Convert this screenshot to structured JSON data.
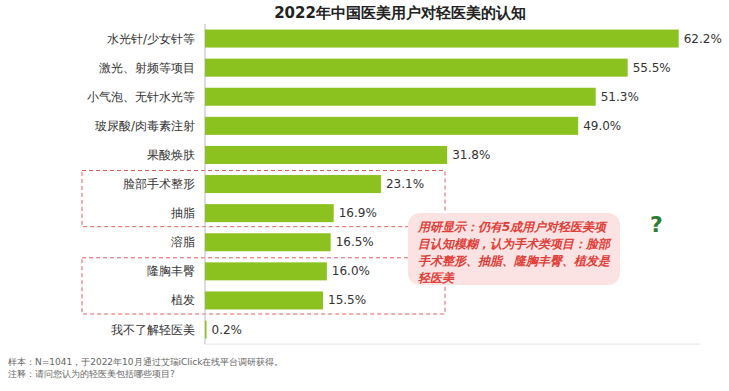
{
  "chart_data": {
    "type": "bar",
    "orientation": "horizontal",
    "title": "2022年中国医美用户对轻医美的认知",
    "categories": [
      "水光针/少女针等",
      "激光、射频等项目",
      "小气泡、无针水光等",
      "玻尿酸/肉毒素注射",
      "果酸焕肤",
      "脸部手术整形",
      "抽脂",
      "溶脂",
      "隆胸丰臀",
      "植发",
      "我不了解轻医美"
    ],
    "values": [
      62.2,
      55.5,
      51.3,
      49.0,
      31.8,
      23.1,
      16.9,
      16.5,
      16.0,
      15.5,
      0.2
    ],
    "value_labels": [
      "62.2%",
      "55.5%",
      "51.3%",
      "49.0%",
      "31.8%",
      "23.1%",
      "16.9%",
      "16.5%",
      "16.0%",
      "15.5%",
      "0.2%"
    ],
    "color": "#8cc21f",
    "xlim": [
      0,
      65
    ],
    "data_labels": true,
    "tick_labels": "y",
    "annotations": [
      "用研显示：仍有5成用户对轻医美项目认知模糊，认为手术类项目：脸部手术整形、抽脂、隆胸丰臀、植发是轻医美"
    ],
    "notes": [
      "样本：N=1041，于2022年10月通过艾瑞iClick在线平台调研获得。",
      "注释：请问您认为的轻医美包括哪些项目?"
    ]
  }
}
